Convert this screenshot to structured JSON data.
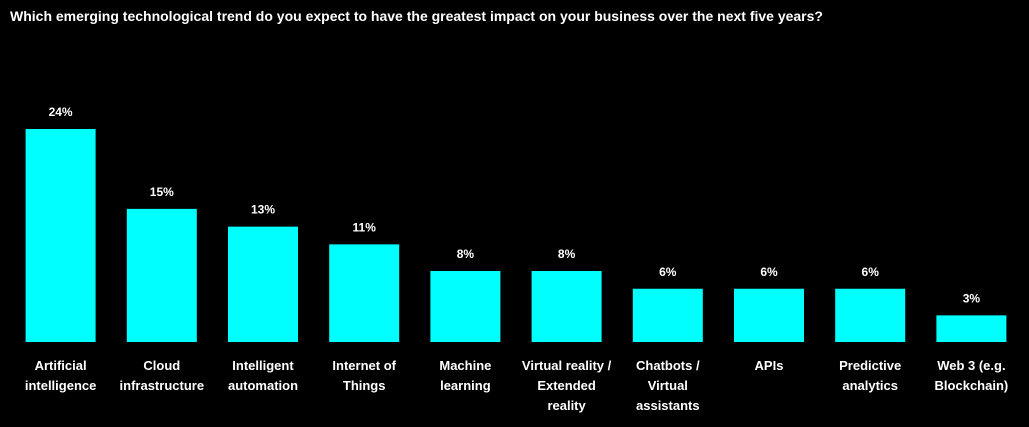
{
  "chart_data": {
    "type": "bar",
    "title": "Which emerging technological trend do you expect to have the greatest impact on your business over the next five years?",
    "categories": [
      "Artificial intelligence",
      "Cloud infrastructure",
      "Intelligent automation",
      "Internet of Things",
      "Machine learning",
      "Virtual reality / Extended reality",
      "Chatbots / Virtual assistants",
      "APIs",
      "Predictive analytics",
      "Web 3 (e.g. Blockchain)"
    ],
    "values": [
      24,
      15,
      13,
      11,
      8,
      8,
      6,
      6,
      6,
      3
    ],
    "value_labels": [
      "24%",
      "15%",
      "13%",
      "11%",
      "8%",
      "8%",
      "6%",
      "6%",
      "6%",
      "3%"
    ],
    "color": "#00ffff"
  }
}
